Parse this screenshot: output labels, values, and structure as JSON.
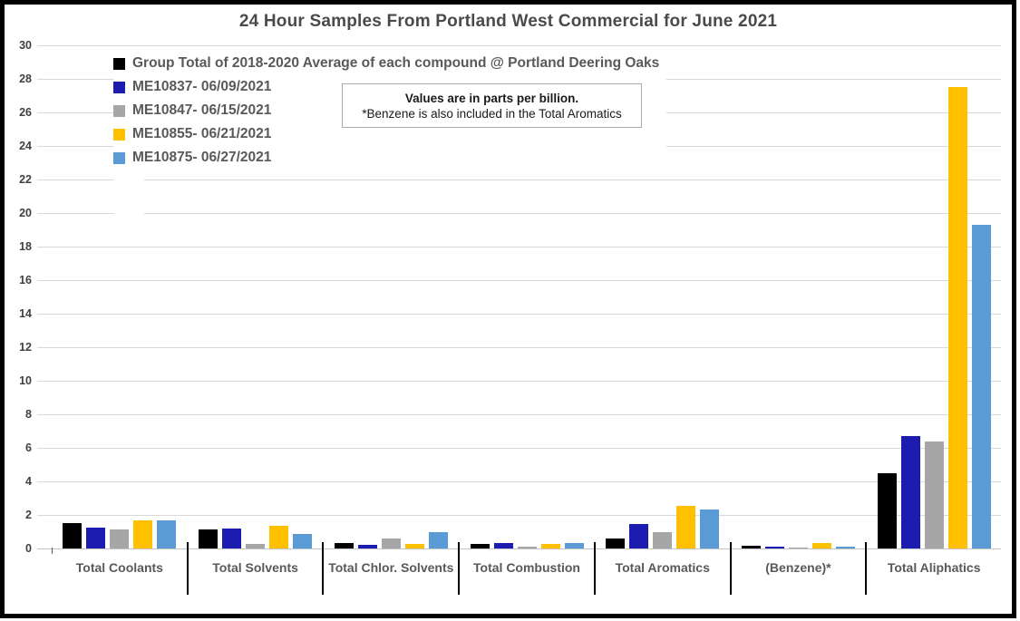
{
  "chart": {
    "title": "24 Hour Samples From Portland West Commercial for June 2021",
    "annotation": {
      "line1": "Values are in parts per billion.",
      "line2": "*Benzene is also included in the Total Aromatics"
    }
  },
  "chart_data": {
    "type": "bar",
    "title": "24 Hour Samples From Portland West Commercial for June 2021",
    "units": "parts per billion",
    "categories": [
      "Total Coolants",
      "Total Solvents",
      "Total Chlor. Solvents",
      "Total Combustion",
      "Total Aromatics",
      "(Benzene)*",
      "Total Aliphatics"
    ],
    "series": [
      {
        "name": "Group Total of 2018-2020 Average of each compound @ Portland Deering Oaks",
        "color": "#000000",
        "values": [
          1.5,
          1.15,
          0.35,
          0.25,
          0.6,
          0.15,
          4.5
        ]
      },
      {
        "name": "ME10837- 06/09/2021",
        "color": "#1c1cb0",
        "values": [
          1.25,
          1.2,
          0.2,
          0.3,
          1.45,
          0.1,
          6.7
        ]
      },
      {
        "name": "ME10847- 06/15/2021",
        "color": "#a6a6a6",
        "values": [
          1.15,
          0.25,
          0.6,
          0.1,
          0.95,
          0.05,
          6.4
        ]
      },
      {
        "name": "ME10855- 06/21/2021",
        "color": "#ffc000",
        "values": [
          1.65,
          1.35,
          0.25,
          0.25,
          2.55,
          0.3,
          27.5
        ]
      },
      {
        "name": "ME10875- 06/27/2021",
        "color": "#5b9bd5",
        "values": [
          1.7,
          0.85,
          1.0,
          0.3,
          2.3,
          0.1,
          19.3
        ]
      }
    ],
    "ylim": [
      0,
      30
    ],
    "ytick_step": 2,
    "grid": true,
    "legend_position": "top-left"
  },
  "colors": {
    "gridline": "#d9d9d9",
    "axis_line": "#c3c3c3",
    "tick_text": "#404040",
    "label_text": "#595959",
    "title_text": "#4a4a4a"
  }
}
